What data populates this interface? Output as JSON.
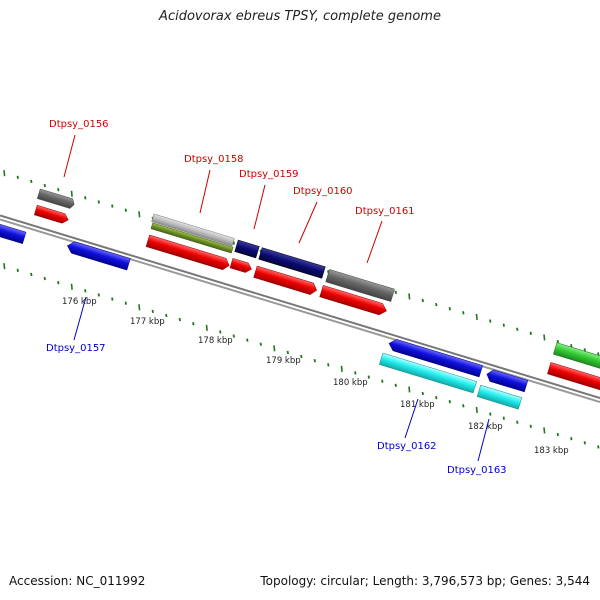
{
  "header": {
    "title": "Acidovorax ebreus TPSY, complete genome"
  },
  "footer": {
    "accession": "Accession: NC_011992",
    "summary": "Topology: circular; Length: 3,796,573 bp; Genes: 3,544"
  },
  "scale_labels": [
    "176 kbp",
    "177 kbp",
    "178 kbp",
    "179 kbp",
    "180 kbp",
    "181 kbp",
    "182 kbp",
    "183 kbp"
  ],
  "gene_labels": {
    "forward": [
      "Dtpsy_0156",
      "Dtpsy_0158",
      "Dtpsy_0159",
      "Dtpsy_0160",
      "Dtpsy_0161"
    ],
    "reverse": [
      "Dtpsy_0157",
      "Dtpsy_0162",
      "Dtpsy_0163"
    ]
  },
  "colors": {
    "forward_label": "#cc0000",
    "reverse_label": "#0000cc",
    "tick": "#1e7a1e",
    "backbone": "#808080",
    "red": "#ee0000",
    "gray": "#666666",
    "light_gray": "#bbbbbb",
    "olive": "#6b8e23",
    "navy": "#0a0a6e",
    "blue": "#1010dd",
    "cyan": "#22eeee",
    "green": "#33cc33"
  }
}
